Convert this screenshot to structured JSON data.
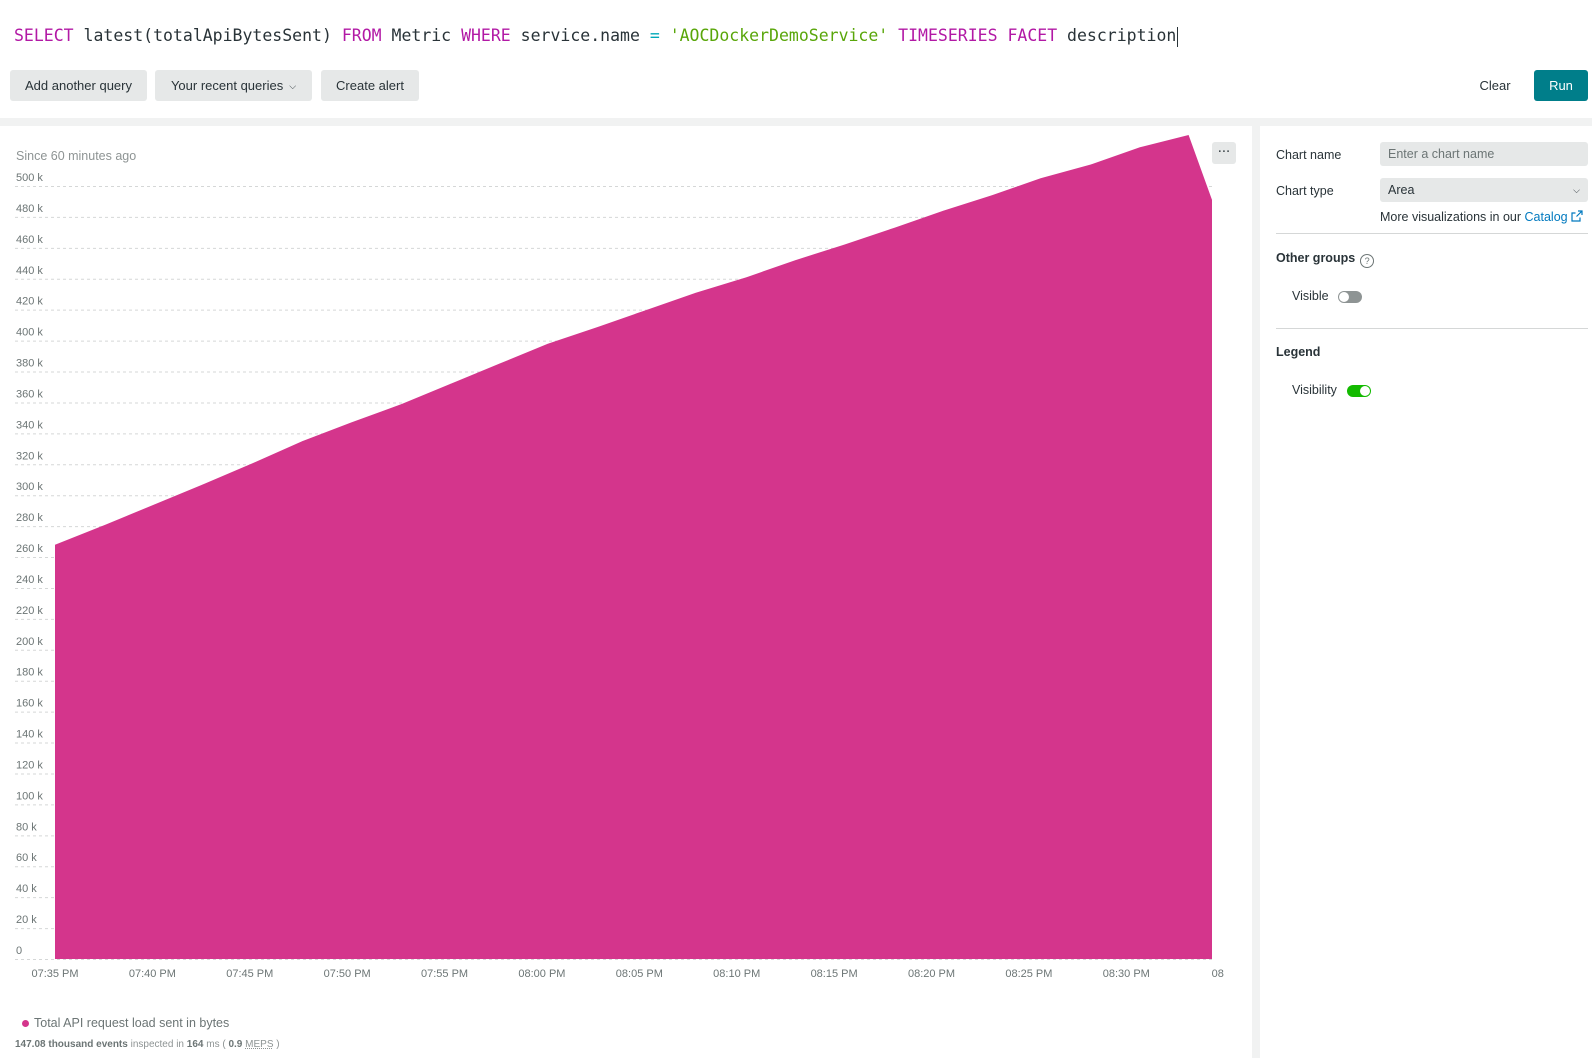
{
  "query": {
    "tokens": [
      {
        "text": "SELECT",
        "kind": "kw"
      },
      {
        "text": " latest(totalApiBytesSent) ",
        "kind": "plain"
      },
      {
        "text": "FROM",
        "kind": "kw"
      },
      {
        "text": " Metric ",
        "kind": "plain"
      },
      {
        "text": "WHERE",
        "kind": "kw"
      },
      {
        "text": " service.name ",
        "kind": "plain"
      },
      {
        "text": "=",
        "kind": "op"
      },
      {
        "text": " ",
        "kind": "plain"
      },
      {
        "text": "'AOCDockerDemoService'",
        "kind": "str"
      },
      {
        "text": " ",
        "kind": "plain"
      },
      {
        "text": "TIMESERIES",
        "kind": "kw"
      },
      {
        "text": " ",
        "kind": "plain"
      },
      {
        "text": "FACET",
        "kind": "kw"
      },
      {
        "text": " description",
        "kind": "plain"
      }
    ]
  },
  "toolbar": {
    "add_query_label": "Add another query",
    "recent_queries_label": "Your recent queries",
    "create_alert_label": "Create alert",
    "clear_label": "Clear",
    "run_label": "Run"
  },
  "chart_panel": {
    "since_text": "Since 60 minutes ago",
    "more_label": "···",
    "legend_label": "Total API request load sent in bytes",
    "footer": {
      "events": "147.08 thousand events",
      "inspected_in": "inspected in",
      "ms_value": "164",
      "ms_unit": "ms (",
      "meps_value": "0.9",
      "meps_label": "MEPS",
      "close": ")"
    }
  },
  "chart_data": {
    "type": "area",
    "series": [
      {
        "name": "Total API request load sent in bytes",
        "color": "#d4358c",
        "x_minutes": [
          0,
          2.6,
          5.1,
          7.6,
          10.2,
          12.7,
          15.2,
          17.8,
          20.3,
          22.8,
          25.3,
          27.9,
          30.4,
          32.9,
          35.5,
          38.0,
          40.5,
          43.1,
          45.6,
          48.1,
          50.6,
          53.2,
          55.7,
          58.2,
          59.4
        ],
        "values": [
          268000,
          281000,
          294000,
          307000,
          321000,
          335000,
          347000,
          359000,
          372000,
          385000,
          398000,
          409000,
          420000,
          431000,
          441000,
          452000,
          462000,
          473000,
          484000,
          494000,
          505000,
          514000,
          525000,
          533000,
          491000
        ]
      }
    ],
    "x_tick_labels": [
      "07:35 PM",
      "07:40 PM",
      "07:45 PM",
      "07:50 PM",
      "07:55 PM",
      "08:00 PM",
      "08:05 PM",
      "08:10 PM",
      "08:15 PM",
      "08:20 PM",
      "08:25 PM",
      "08:30 PM",
      "08"
    ],
    "y_tick_labels": [
      "0",
      "20 k",
      "40 k",
      "60 k",
      "80 k",
      "100 k",
      "120 k",
      "140 k",
      "160 k",
      "180 k",
      "200 k",
      "220 k",
      "240 k",
      "260 k",
      "280 k",
      "300 k",
      "320 k",
      "340 k",
      "360 k",
      "380 k",
      "400 k",
      "420 k",
      "440 k",
      "460 k",
      "480 k",
      "500 k"
    ],
    "ylim": [
      0,
      500000
    ],
    "grid": "horizontal-dashed",
    "legend_position": "bottom-left"
  },
  "settings": {
    "chart_name_label": "Chart name",
    "chart_name_placeholder": "Enter a chart name",
    "chart_type_label": "Chart type",
    "chart_type_value": "Area",
    "more_viz_text": "More visualizations in our ",
    "catalog_link": "Catalog",
    "other_groups_title": "Other groups",
    "help_icon": "?",
    "visible_label": "Visible",
    "visible_on": false,
    "legend_title": "Legend",
    "visibility_label": "Visibility",
    "visibility_on": true
  },
  "icons": {
    "recent_chevron": "chevron-down-icon",
    "type_chevron": "chevron-down-icon",
    "catalog": "external-link-icon",
    "help": "help-circle-icon",
    "more": "ellipsis-icon"
  }
}
